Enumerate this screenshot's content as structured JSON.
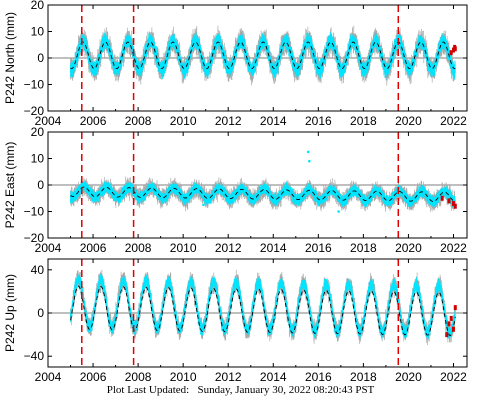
{
  "footer": {
    "label": "Plot Last Updated:",
    "timestamp": "Sunday, January 30, 2022 08:20:43 PST"
  },
  "colors": {
    "cleaned": "#00e5ff",
    "raw": "#a9a9a9",
    "model": "#000000",
    "offsets": "#e00000",
    "recent": "#d00000"
  },
  "chart_data": [
    {
      "type": "scatter",
      "station": "P242",
      "component": "North",
      "ylabel": "P242 North (mm)",
      "xlim": [
        2004,
        2022.6
      ],
      "ylim": [
        -20,
        20
      ],
      "xticks": [
        2004,
        2006,
        2008,
        2010,
        2012,
        2014,
        2016,
        2018,
        2020,
        2022
      ],
      "xtick_labels": [
        "2004",
        "2006",
        "2008",
        "2010",
        "2012",
        "2014",
        "2016",
        "2018",
        "2020",
        "2022"
      ],
      "yticks": [
        -20,
        -10,
        0,
        10,
        20
      ],
      "ytick_labels": [
        "−20",
        "−10",
        "0",
        "10",
        "20"
      ],
      "data_start": 2005.0,
      "data_end": 2022.08,
      "offset_lines": [
        2005.5,
        2007.8,
        2019.55
      ],
      "seasonal_model": {
        "mean": 1.0,
        "amplitude": 5.0,
        "period_years": 1.0,
        "peak_phase_year": 0.55,
        "trend_mm_per_yr": 0.0
      },
      "observed": {
        "mean": 1.0,
        "amplitude": 5.5,
        "scatter_mm": 2.0
      },
      "recent_points": [
        [
          2021.9,
          2.0
        ],
        [
          2022.0,
          3.0
        ],
        [
          2022.05,
          4.0
        ],
        [
          2022.08,
          3.5
        ]
      ]
    },
    {
      "type": "scatter",
      "station": "P242",
      "component": "East",
      "ylabel": "P242 East (mm)",
      "xlim": [
        2004,
        2022.6
      ],
      "ylim": [
        -20,
        20
      ],
      "xticks": [
        2004,
        2006,
        2008,
        2010,
        2012,
        2014,
        2016,
        2018,
        2020,
        2022
      ],
      "xtick_labels": [
        "2004",
        "2006",
        "2008",
        "2010",
        "2012",
        "2014",
        "2016",
        "2018",
        "2020",
        "2022"
      ],
      "yticks": [
        -20,
        -10,
        0,
        10,
        20
      ],
      "ytick_labels": [
        "−20",
        "−10",
        "0",
        "10",
        "20"
      ],
      "data_start": 2005.0,
      "data_end": 2022.08,
      "offset_lines": [
        2005.5,
        2007.8,
        2019.55
      ],
      "seasonal_model": {
        "mean": -2.5,
        "amplitude": 1.8,
        "period_years": 1.0,
        "peak_phase_year": 0.6,
        "trend_mm_per_yr": -0.12
      },
      "observed": {
        "mean": -2.5,
        "amplitude": 2.0,
        "scatter_mm": 1.5
      },
      "outliers": [
        [
          2015.55,
          12.5
        ],
        [
          2015.6,
          9.0
        ],
        [
          2016.9,
          -10.0
        ],
        [
          2010.9,
          -7.5
        ]
      ],
      "recent_points": [
        [
          2021.5,
          -5.0
        ],
        [
          2021.8,
          -6.0
        ],
        [
          2022.0,
          -7.0
        ],
        [
          2022.08,
          -8.0
        ]
      ]
    },
    {
      "type": "scatter",
      "station": "P242",
      "component": "Up",
      "ylabel": "P242 Up (mm)",
      "xlim": [
        2004,
        2022.6
      ],
      "ylim": [
        -50,
        50
      ],
      "xticks": [
        2004,
        2006,
        2008,
        2010,
        2012,
        2014,
        2016,
        2018,
        2020,
        2022
      ],
      "xtick_labels": [
        "2004",
        "2006",
        "2008",
        "2010",
        "2012",
        "2014",
        "2016",
        "2018",
        "2020",
        "2022"
      ],
      "yticks": [
        -40,
        0,
        40
      ],
      "ytick_labels": [
        "−40",
        "0",
        "40"
      ],
      "data_start": 2005.0,
      "data_end": 2022.08,
      "offset_lines": [
        2005.5,
        2007.8,
        2019.55
      ],
      "seasonal_model": {
        "mean": 5.0,
        "amplitude": 20.0,
        "period_years": 1.0,
        "peak_phase_year": 0.35,
        "trend_mm_per_yr": -0.35
      },
      "observed": {
        "mean": 9.0,
        "amplitude": 22.0,
        "scatter_mm": 4.0
      },
      "recent_points": [
        [
          2021.7,
          -20.0
        ],
        [
          2021.8,
          -10.0
        ],
        [
          2021.9,
          -5.0
        ],
        [
          2022.0,
          -15.0
        ],
        [
          2022.08,
          5.0
        ]
      ]
    }
  ]
}
